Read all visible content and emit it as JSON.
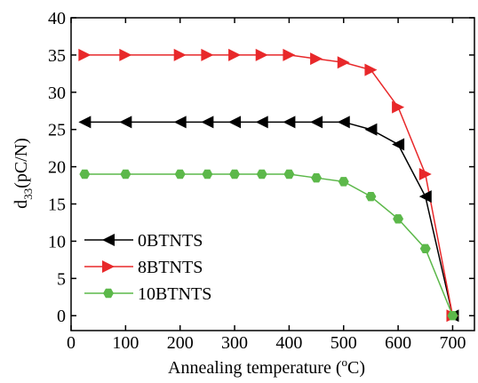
{
  "chart_data": {
    "type": "line",
    "x_label": {
      "text": "Annealing temperature (",
      "sup": "o",
      "end": "C)"
    },
    "y_label": {
      "main": "d",
      "sub": "33",
      "unit": "(pC/N)"
    },
    "x": [
      25,
      100,
      200,
      250,
      300,
      350,
      400,
      450,
      500,
      550,
      600,
      650,
      700
    ],
    "series": [
      {
        "name": "0BTNTS",
        "color": "#000000",
        "marker": "triangle-left",
        "values": [
          26,
          26,
          26,
          26,
          26,
          26,
          26,
          26,
          26,
          25,
          23,
          16,
          0
        ]
      },
      {
        "name": "8BTNTS",
        "color": "#e8282a",
        "marker": "triangle-right",
        "values": [
          35,
          35,
          35,
          35,
          35,
          35,
          35,
          34.5,
          34,
          33,
          28,
          19,
          0
        ]
      },
      {
        "name": "10BTNTS",
        "color": "#5cb84a",
        "marker": "hexagon",
        "values": [
          19,
          19,
          19,
          19,
          19,
          19,
          19,
          18.5,
          18,
          16,
          13,
          9,
          0
        ]
      }
    ],
    "xlim": [
      0,
      740
    ],
    "xticks": [
      0,
      100,
      200,
      300,
      400,
      500,
      600,
      700
    ],
    "ylim": [
      -2,
      40
    ],
    "yticks": [
      0,
      5,
      10,
      15,
      20,
      25,
      30,
      35,
      40
    ],
    "legend": "lower-left"
  }
}
